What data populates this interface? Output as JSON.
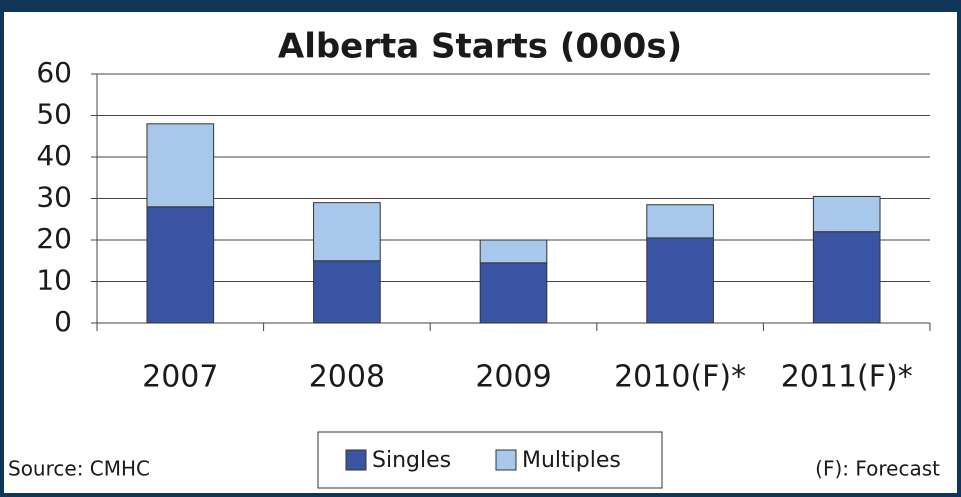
{
  "chart_data": {
    "type": "stacked_bar",
    "title": "Alberta Starts (000s)",
    "categories": [
      "2007",
      "2008",
      "2009",
      "2010(F)*",
      "2011(F)*"
    ],
    "series": [
      {
        "name": "Singles",
        "color": "#3a54a4",
        "values": [
          28,
          15,
          14.5,
          20.5,
          22
        ]
      },
      {
        "name": "Multiples",
        "color": "#a7c8ea",
        "values": [
          20,
          14,
          5.5,
          8,
          8.5
        ]
      }
    ],
    "ylim": [
      0,
      60
    ],
    "yticks": [
      0,
      10,
      20,
      30,
      40,
      50,
      60
    ],
    "grid": true,
    "legend": "bottom",
    "source": "Source: CMHC",
    "note": "(F): Forecast"
  }
}
